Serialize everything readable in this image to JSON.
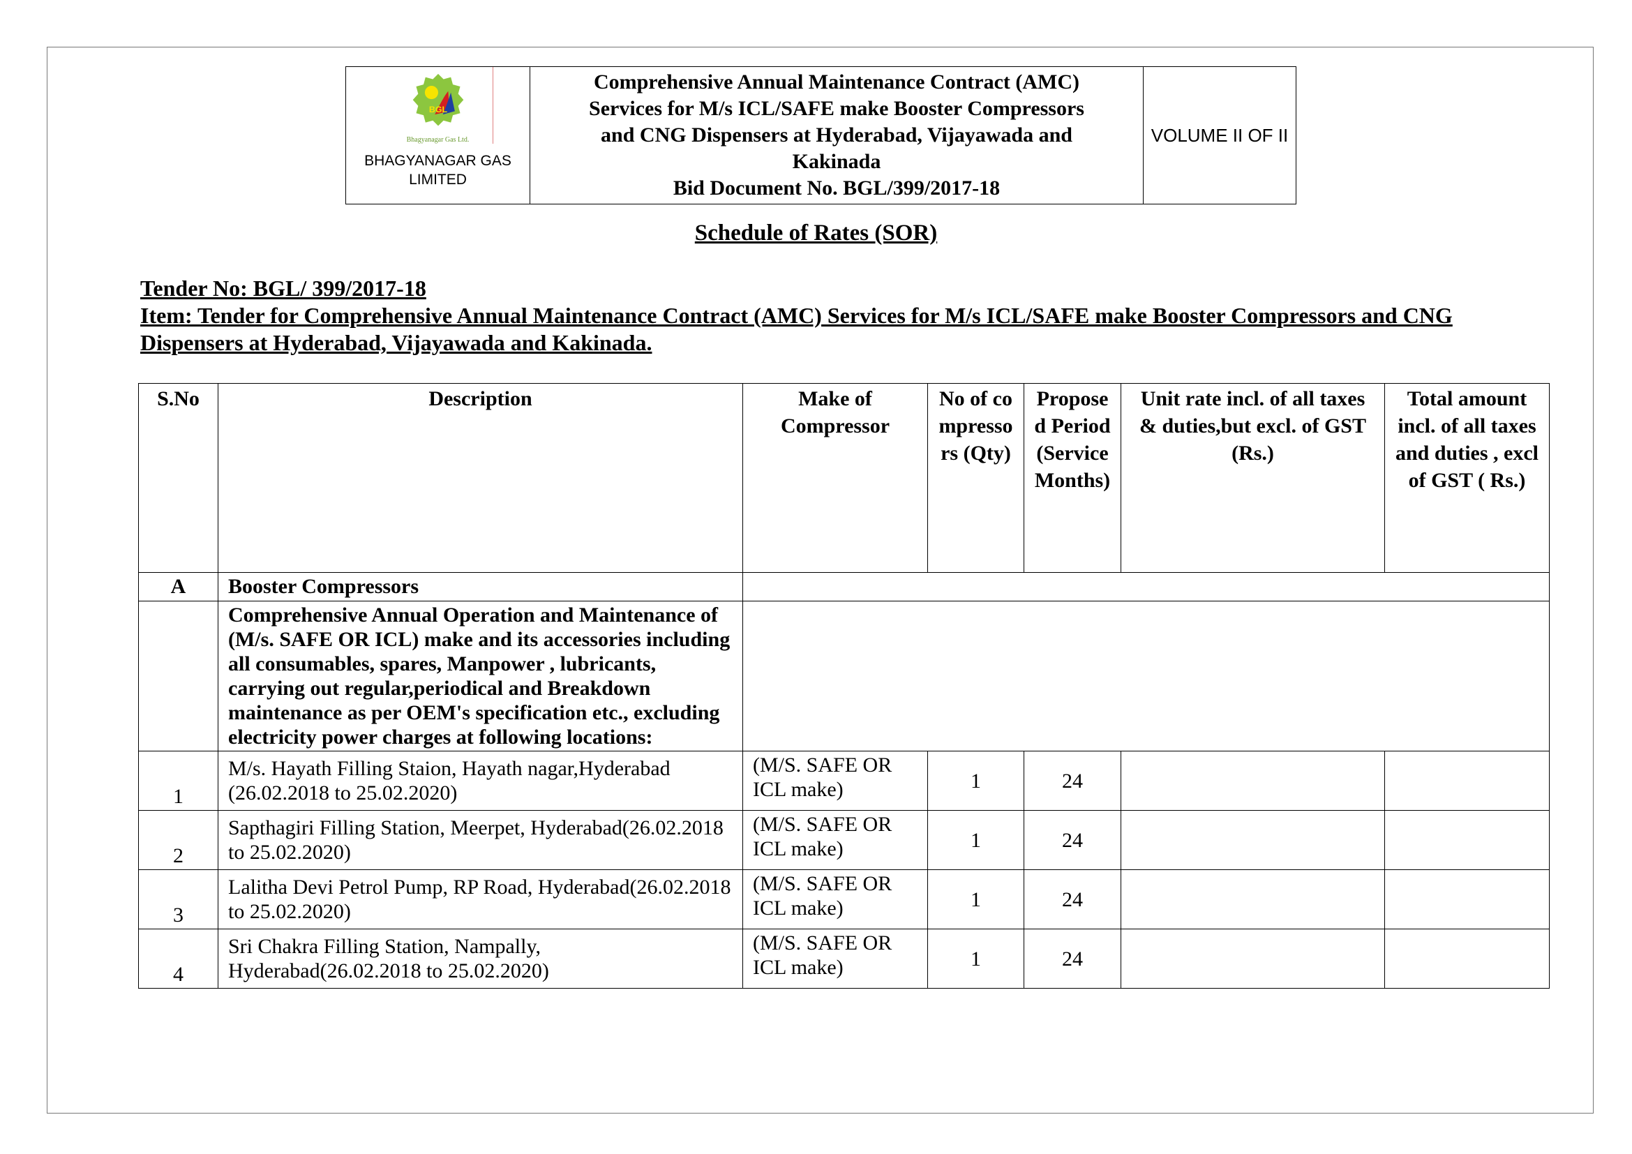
{
  "header": {
    "company": "BHAGYANAGAR GAS LIMITED",
    "logo_text": "BGL",
    "logo_caption": "Bhagyanagar Gas Ltd.",
    "title_lines": [
      "Comprehensive Annual Maintenance Contract (AMC)",
      "Services for M/s ICL/SAFE make Booster Compressors",
      "and CNG Dispensers at Hyderabad, Vijayawada and",
      "Kakinada",
      "Bid Document No. BGL/399/2017-18"
    ],
    "volume": "VOLUME II OF II"
  },
  "sor_title": "Schedule of Rates (SOR)",
  "tender_no": "Tender No: BGL/ 399/2017-18",
  "item": "Item: Tender for  Comprehensive Annual Maintenance Contract (AMC) Services for M/s ICL/SAFE make Booster Compressors and CNG Dispensers at Hyderabad, Vijayawada and Kakinada.",
  "table": {
    "columns": [
      "S.No",
      "Description",
      "Make of Compressor",
      "No of compressors (Qty)",
      "Proposed Period (Service Months)",
      "Unit rate  incl. of all taxes & duties,but excl. of GST (Rs.)",
      "Total amount incl. of all taxes and duties , excl of GST  ( Rs.)"
    ],
    "section": {
      "sno": "A",
      "title": "Booster Compressors"
    },
    "section_desc": "Comprehensive Annual Operation and Maintenance of (M/s. SAFE OR ICL) make and its accessories including all consumables, spares, Manpower , lubricants, carrying out regular,periodical and Breakdown maintenance as per OEM's specification etc., excluding electricity power charges at following locations:",
    "rows": [
      {
        "sno": "1",
        "desc": "M/s. Hayath Filling Staion, Hayath nagar,Hyderabad (26.02.2018  to 25.02.2020)",
        "make": "(M/S. SAFE OR ICL make)",
        "qty": "1",
        "period": "24",
        "unit_rate": "",
        "total": ""
      },
      {
        "sno": "2",
        "desc": "Sapthagiri Filling Station, Meerpet, Hyderabad(26.02.2018  to 25.02.2020)",
        "make": "(M/S. SAFE OR ICL make)",
        "qty": "1",
        "period": "24",
        "unit_rate": "",
        "total": ""
      },
      {
        "sno": "3",
        "desc": "Lalitha Devi Petrol Pump, RP Road, Hyderabad(26.02.2018  to 25.02.2020)",
        "make": "(M/S. SAFE OR ICL make)",
        "qty": "1",
        "period": "24",
        "unit_rate": "",
        "total": ""
      },
      {
        "sno": "4",
        "desc": "Sri Chakra Filling Station, Nampally, Hyderabad(26.02.2018  to 25.02.2020)",
        "make": "(M/S. SAFE OR ICL make)",
        "qty": "1",
        "period": "24",
        "unit_rate": "",
        "total": ""
      }
    ]
  }
}
